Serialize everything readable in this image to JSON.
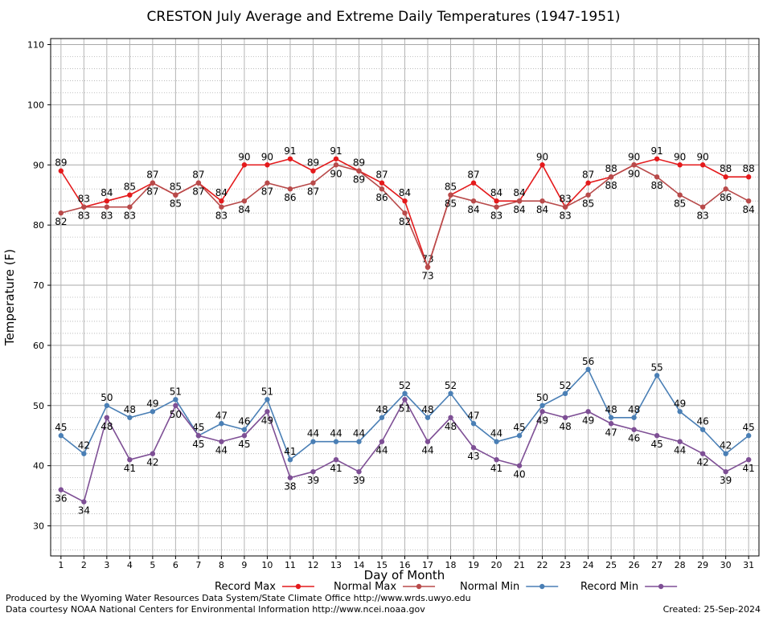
{
  "chart_data": {
    "type": "line",
    "title": "CRESTON July Average and Extreme Daily Temperatures (1947-1951)",
    "xlabel": "Day of Month",
    "ylabel": "Temperature (F)",
    "x": [
      1,
      2,
      3,
      4,
      5,
      6,
      7,
      8,
      9,
      10,
      11,
      12,
      13,
      14,
      15,
      16,
      17,
      18,
      19,
      20,
      21,
      22,
      23,
      24,
      25,
      26,
      27,
      28,
      29,
      30,
      31
    ],
    "xlim": [
      0.55,
      31.45
    ],
    "ylim": [
      25,
      111
    ],
    "yticks": [
      30,
      40,
      50,
      60,
      70,
      80,
      90,
      100,
      110
    ],
    "grid": true,
    "legend_position": "bottom",
    "series": [
      {
        "name": "Record Max",
        "color": "#e41a1c",
        "label_pos": "above",
        "values": [
          89,
          83,
          84,
          85,
          87,
          85,
          87,
          84,
          90,
          90,
          91,
          89,
          91,
          89,
          87,
          84,
          73,
          85,
          87,
          84,
          84,
          90,
          83,
          87,
          88,
          90,
          91,
          90,
          90,
          88,
          88
        ]
      },
      {
        "name": "Normal Max",
        "color": "#b84a4a",
        "label_pos": "below",
        "values": [
          82,
          83,
          83,
          83,
          87,
          85,
          87,
          83,
          84,
          87,
          86,
          87,
          90,
          89,
          86,
          82,
          73,
          85,
          84,
          83,
          84,
          84,
          83,
          85,
          88,
          90,
          88,
          85,
          83,
          86,
          84
        ]
      },
      {
        "name": "Normal Min",
        "color": "#4a7fb5",
        "label_pos": "above",
        "values": [
          45,
          42,
          50,
          48,
          49,
          51,
          45,
          47,
          46,
          51,
          41,
          44,
          44,
          44,
          48,
          52,
          48,
          52,
          47,
          44,
          45,
          50,
          52,
          56,
          48,
          48,
          55,
          49,
          46,
          42,
          45
        ]
      },
      {
        "name": "Record Min",
        "color": "#7e4f95",
        "label_pos": "below",
        "values": [
          36,
          34,
          48,
          41,
          42,
          50,
          45,
          44,
          45,
          49,
          38,
          39,
          41,
          39,
          44,
          51,
          44,
          48,
          43,
          41,
          40,
          49,
          48,
          49,
          47,
          46,
          45,
          44,
          42,
          39,
          41
        ]
      }
    ]
  },
  "footer": {
    "line1": "Produced by the Wyoming Water Resources Data System/State Climate Office http://www.wrds.uwyo.edu",
    "line2": "Data courtesy NOAA National Centers for Environmental Information http://www.ncei.noaa.gov",
    "created": "Created:  25-Sep-2024"
  }
}
